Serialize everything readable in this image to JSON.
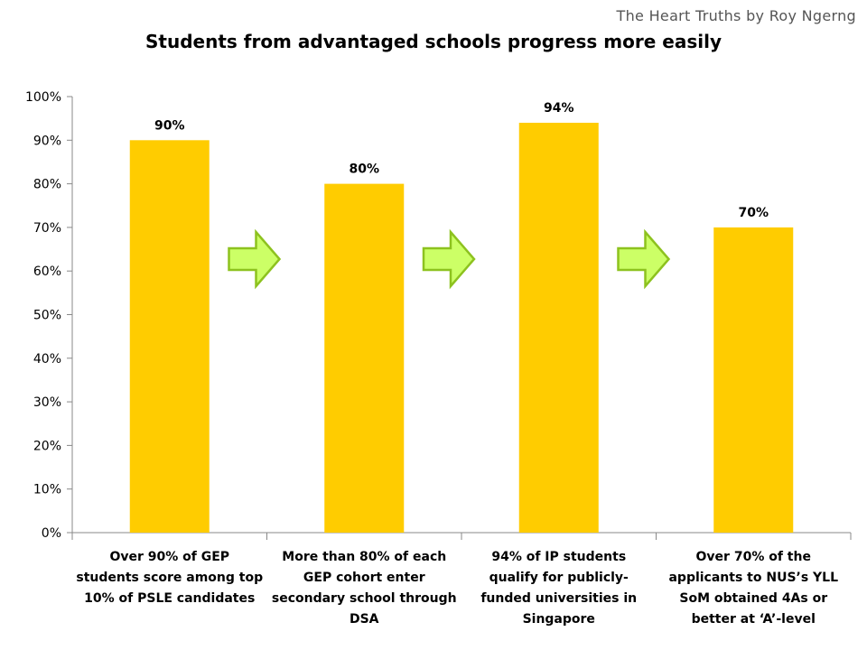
{
  "watermark": "The Heart Truths by Roy Ngerng",
  "chart_data": {
    "type": "bar",
    "title": "Students from advantaged schools progress more easily",
    "categories": [
      "Over 90% of GEP students score among top 10% of PSLE candidates",
      "More than 80% of each GEP cohort enter secondary school through DSA",
      "94% of IP students qualify for publicly-funded universities in Singapore",
      "Over 70% of the applicants to NUS’s YLL SoM obtained 4As or better at ‘A’-level"
    ],
    "category_lines": [
      [
        "Over 90% of GEP",
        "students score among top",
        "10% of PSLE candidates"
      ],
      [
        "More than 80% of each",
        "GEP cohort enter",
        "secondary school through",
        "DSA"
      ],
      [
        "94% of IP students",
        "qualify for publicly-",
        "funded universities in",
        "Singapore"
      ],
      [
        "Over 70% of the",
        "applicants to NUS’s YLL",
        "SoM obtained 4As or",
        "better at ‘A’-level"
      ]
    ],
    "values": [
      90,
      80,
      94,
      70
    ],
    "data_labels": [
      "90%",
      "80%",
      "94%",
      "70%"
    ],
    "ylim": [
      0,
      100
    ],
    "yticks": [
      "0%",
      "10%",
      "20%",
      "30%",
      "40%",
      "50%",
      "60%",
      "70%",
      "80%",
      "90%",
      "100%"
    ],
    "xlabel": "",
    "ylabel": "",
    "grid": false,
    "legend": "none",
    "bar_color": "#FFCC00",
    "arrow_fill": "#CCFF66",
    "arrow_stroke": "#8DC21F",
    "annotations": [
      "right-arrow-icon",
      "right-arrow-icon",
      "right-arrow-icon"
    ]
  }
}
